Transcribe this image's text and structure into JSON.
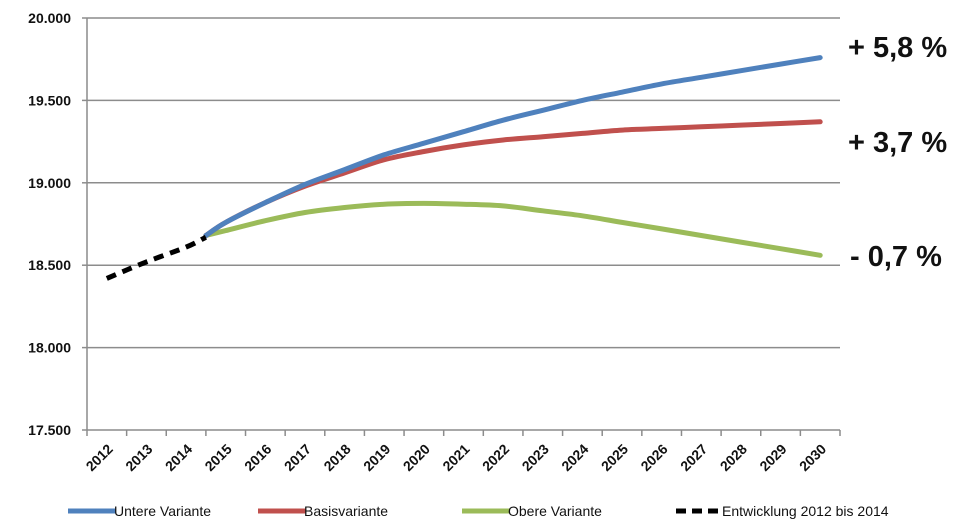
{
  "chart_data": {
    "type": "line",
    "x": [
      2012,
      2013,
      2014,
      2015,
      2016,
      2017,
      2018,
      2019,
      2020,
      2021,
      2022,
      2023,
      2024,
      2025,
      2026,
      2027,
      2028,
      2029,
      2030
    ],
    "x_tick_labels": [
      "2012",
      "2013",
      "2014",
      "2015",
      "2016",
      "2017",
      "2018",
      "2019",
      "2020",
      "2021",
      "2022",
      "2023",
      "2024",
      "2025",
      "2026",
      "2027",
      "2028",
      "2029",
      "2030"
    ],
    "ylim": [
      17500,
      20000
    ],
    "y_ticks": [
      17500,
      18000,
      18500,
      19000,
      19500,
      20000
    ],
    "y_tick_labels": [
      "17.500",
      "18.000",
      "18.500",
      "19.000",
      "19.500",
      "20.000"
    ],
    "grid": "horizontal",
    "legend_position": "bottom",
    "series": [
      {
        "name": "Untere Variante",
        "color": "#4f81bd",
        "style": "solid",
        "x": [
          2014.5,
          2015,
          2016,
          2017,
          2018,
          2019,
          2020,
          2021,
          2022,
          2023,
          2024,
          2025,
          2026,
          2027,
          2028,
          2029,
          2030
        ],
        "values": [
          18680,
          18760,
          18880,
          18990,
          19080,
          19170,
          19240,
          19310,
          19380,
          19440,
          19500,
          19550,
          19600,
          19640,
          19680,
          19720,
          19760
        ]
      },
      {
        "name": "Basisvariante",
        "color": "#c0504d",
        "style": "solid",
        "x": [
          2014.5,
          2015,
          2016,
          2017,
          2018,
          2019,
          2020,
          2021,
          2022,
          2023,
          2024,
          2025,
          2026,
          2027,
          2028,
          2029,
          2030
        ],
        "values": [
          18680,
          18760,
          18880,
          18980,
          19060,
          19140,
          19190,
          19230,
          19260,
          19280,
          19300,
          19320,
          19330,
          19340,
          19350,
          19360,
          19370
        ]
      },
      {
        "name": "Obere Variante",
        "color": "#9bbb59",
        "style": "solid",
        "x": [
          2014.5,
          2015,
          2016,
          2017,
          2018,
          2019,
          2020,
          2021,
          2022,
          2023,
          2024,
          2025,
          2026,
          2027,
          2028,
          2029,
          2030
        ],
        "values": [
          18680,
          18710,
          18770,
          18820,
          18850,
          18870,
          18875,
          18870,
          18860,
          18830,
          18800,
          18760,
          18720,
          18680,
          18640,
          18600,
          18560
        ]
      },
      {
        "name": "Entwicklung 2012 bis 2014",
        "color": "#000000",
        "style": "dashed",
        "x": [
          2012,
          2013,
          2014,
          2014.5
        ],
        "values": [
          18420,
          18520,
          18610,
          18670
        ]
      }
    ],
    "annotations": [
      "+ 5,8 %",
      "+ 3,7 %",
      "- 0,7 %"
    ]
  }
}
